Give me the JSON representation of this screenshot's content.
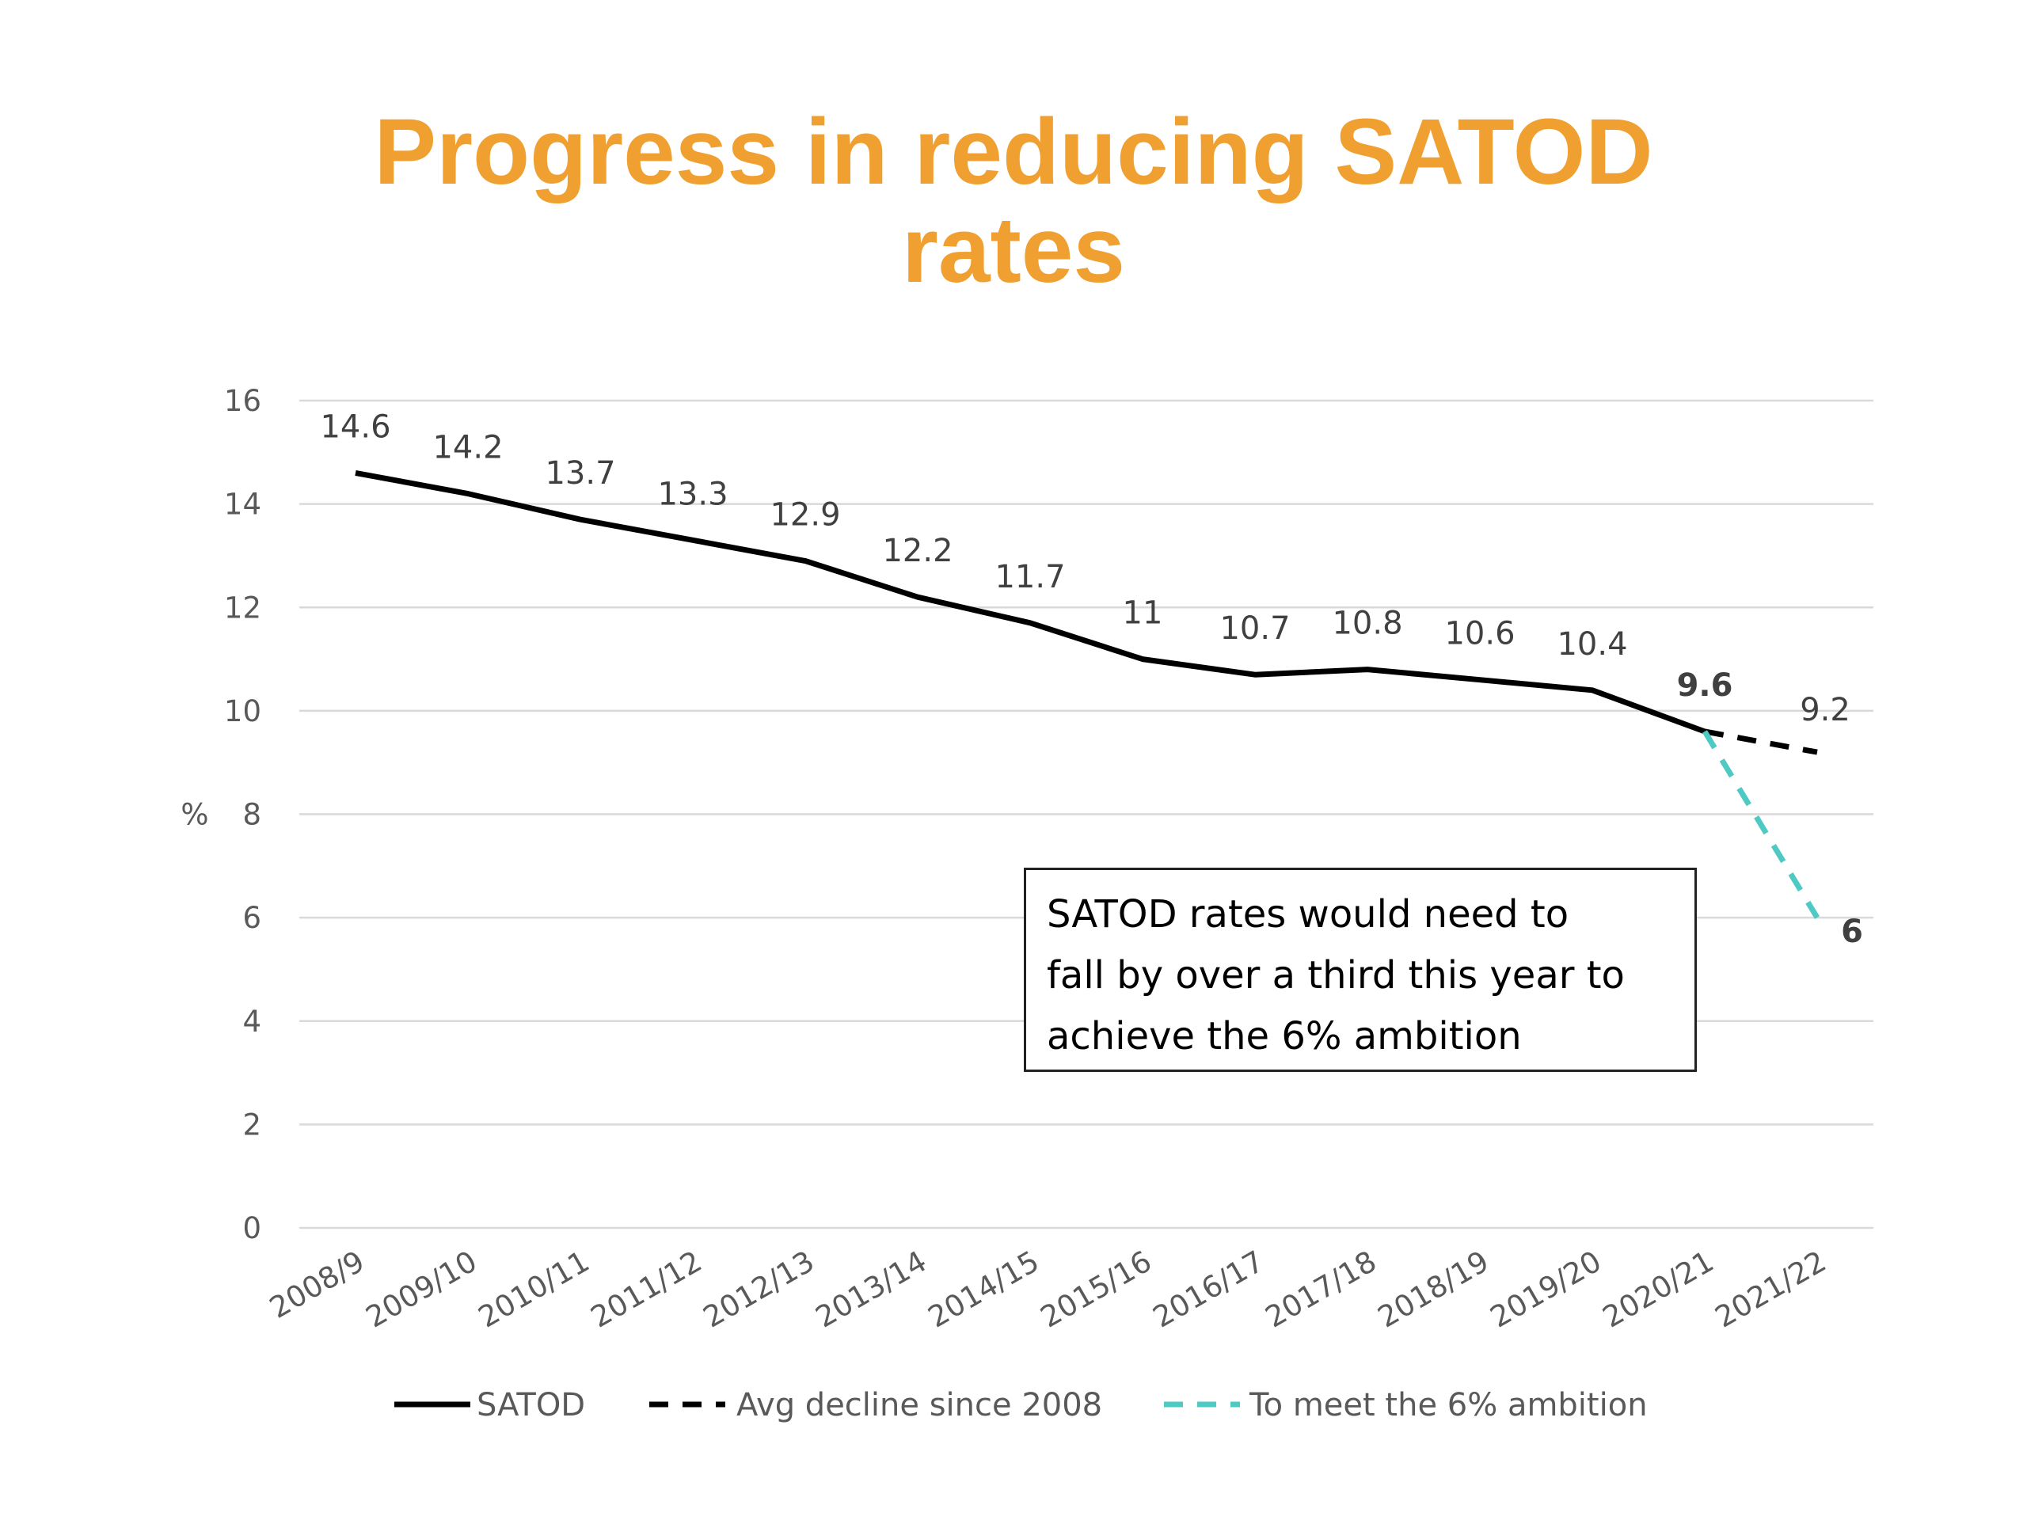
{
  "chart_data": {
    "type": "line",
    "title": "Progress in reducing SATOD rates",
    "title_lines": [
      "Progress in reducing SATOD",
      "rates"
    ],
    "ylabel": "%",
    "xlabel": "",
    "ylim": [
      0,
      16
    ],
    "yticks": [
      0,
      2,
      4,
      6,
      8,
      10,
      12,
      14,
      16
    ],
    "grid": true,
    "legend_position": "bottom",
    "categories": [
      "2008/9",
      "2009/10",
      "2010/11",
      "2011/12",
      "2012/13",
      "2013/14",
      "2014/15",
      "2015/16",
      "2016/17",
      "2017/18",
      "2018/19",
      "2019/20",
      "2020/21",
      "2021/22"
    ],
    "series": [
      {
        "name": "SATOD",
        "style": "solid",
        "color": "#000000",
        "values": [
          14.6,
          14.2,
          13.7,
          13.3,
          12.9,
          12.2,
          11.7,
          11,
          10.7,
          10.8,
          10.6,
          10.4,
          9.6,
          null
        ],
        "labels": [
          "14.6",
          "14.2",
          "13.7",
          "13.3",
          "12.9",
          "12.2",
          "11.7",
          "11",
          "10.7",
          "10.8",
          "10.6",
          "10.4",
          "9.6",
          null
        ],
        "bold_label_index": 12
      },
      {
        "name": "Avg decline since 2008",
        "style": "dashed",
        "color": "#000000",
        "values": [
          null,
          null,
          null,
          null,
          null,
          null,
          null,
          null,
          null,
          null,
          null,
          null,
          9.6,
          9.2
        ],
        "labels": [
          null,
          null,
          null,
          null,
          null,
          null,
          null,
          null,
          null,
          null,
          null,
          null,
          null,
          "9.2"
        ]
      },
      {
        "name": "To meet the 6% ambition",
        "style": "dashed",
        "color": "#4ec9c3",
        "values": [
          null,
          null,
          null,
          null,
          null,
          null,
          null,
          null,
          null,
          null,
          null,
          null,
          9.6,
          6
        ],
        "labels": [
          null,
          null,
          null,
          null,
          null,
          null,
          null,
          null,
          null,
          null,
          null,
          null,
          null,
          "6"
        ],
        "bold_label_index": 13
      }
    ],
    "annotation": "SATOD rates would need to\nfall by over a third this year to\nachieve the 6% ambition"
  }
}
